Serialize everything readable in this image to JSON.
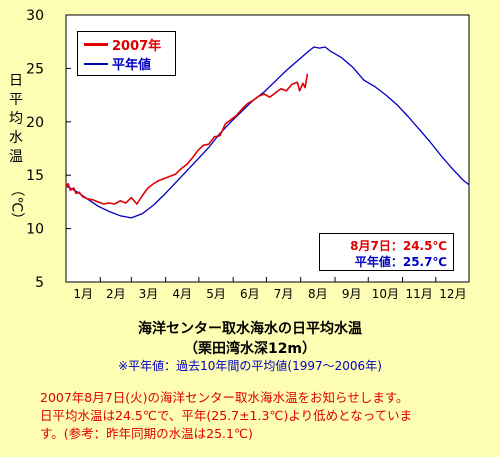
{
  "chart_data": {
    "type": "line",
    "y_axis_label": [
      "日",
      "平",
      "均",
      "水",
      "温",
      "（℃）"
    ],
    "ylim": [
      5,
      30
    ],
    "y_ticks": [
      5,
      10,
      15,
      20,
      25,
      30
    ],
    "x_ticks": [
      "1月",
      "2月",
      "3月",
      "4月",
      "5月",
      "6月",
      "7月",
      "8月",
      "9月",
      "10月",
      "11月",
      "12月"
    ],
    "xlim_days": [
      1,
      365
    ],
    "grid": false,
    "legend_position": "top-left",
    "series": [
      {
        "name": "2007年",
        "color": "#e00000",
        "x_days": [
          1,
          3,
          5,
          8,
          10,
          13,
          16,
          20,
          25,
          30,
          35,
          40,
          45,
          50,
          55,
          60,
          65,
          70,
          75,
          80,
          85,
          90,
          95,
          100,
          105,
          110,
          115,
          120,
          125,
          130,
          135,
          140,
          145,
          150,
          155,
          160,
          165,
          170,
          175,
          180,
          185,
          190,
          195,
          200,
          205,
          210,
          212,
          215,
          217,
          219
        ],
        "y": [
          13.9,
          14.2,
          13.6,
          13.8,
          13.3,
          13.4,
          13.0,
          12.8,
          12.7,
          12.5,
          12.3,
          12.4,
          12.3,
          12.6,
          12.4,
          12.9,
          12.3,
          13.1,
          13.8,
          14.2,
          14.5,
          14.7,
          14.9,
          15.1,
          15.6,
          16.0,
          16.6,
          17.3,
          17.8,
          17.9,
          18.6,
          18.7,
          19.8,
          20.2,
          20.6,
          21.2,
          21.7,
          22.0,
          22.4,
          22.6,
          22.3,
          22.7,
          23.1,
          22.9,
          23.5,
          23.7,
          22.9,
          23.6,
          23.2,
          24.5
        ]
      },
      {
        "name": "平年値",
        "color": "#0000c0",
        "x_days": [
          1,
          10,
          20,
          30,
          40,
          50,
          60,
          70,
          80,
          90,
          100,
          110,
          120,
          130,
          140,
          150,
          160,
          170,
          180,
          190,
          200,
          210,
          220,
          225,
          230,
          235,
          240,
          250,
          260,
          270,
          275,
          280,
          290,
          300,
          310,
          320,
          330,
          340,
          350,
          360,
          365
        ],
        "y": [
          14.0,
          13.5,
          12.8,
          12.1,
          11.6,
          11.2,
          11.0,
          11.4,
          12.2,
          13.2,
          14.3,
          15.4,
          16.5,
          17.6,
          18.9,
          20.0,
          21.0,
          22.0,
          22.8,
          23.8,
          24.8,
          25.7,
          26.6,
          27.0,
          26.9,
          27.0,
          26.6,
          26.0,
          25.1,
          23.9,
          23.6,
          23.3,
          22.5,
          21.6,
          20.5,
          19.3,
          18.1,
          16.8,
          15.6,
          14.5,
          14.1
        ]
      }
    ]
  },
  "info": {
    "today_label": "8月7日：24.5℃",
    "normal_label": "平年値：25.7℃"
  },
  "caption": {
    "title": "海洋センター取水海水の日平均水温",
    "subtitle": "（栗田湾水深12m）",
    "note": "※平年値：過去10年間の平均値(1997～2006年)"
  },
  "notice": {
    "line1": "2007年8月7日(火)の海洋センター取水海水温をお知らせします。",
    "line2": "日平均水温は24.5℃で、平年(25.7±1.3℃)より低めとなっていま",
    "line3": "す。(参考：昨年同期の水温は25.1℃)"
  },
  "colors": {
    "background": "#fdfdb3",
    "plot_background": "#ffffff",
    "series_2007": "#e00000",
    "series_normal": "#0000c0",
    "notice_text": "#e00000",
    "note_text": "#0000c0"
  }
}
